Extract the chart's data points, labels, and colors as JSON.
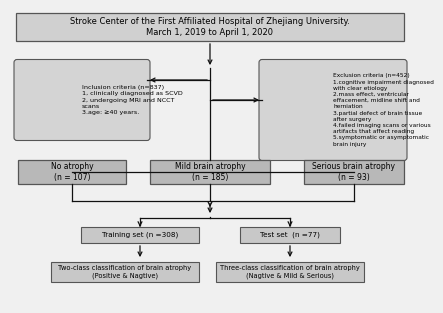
{
  "title_line1": "Stroke Center of the First Affiliated Hospital of Zhejiang University.",
  "title_line2": "March 1, 2019 to April 1, 2020",
  "inclusion_text": "Inclusion criteria (n=837)\n1, clinically diagnosed as SCVD\n2, undergoing MRI and NCCT\nscans\n3.age: ≥40 years.",
  "exclusion_text": "Exclusion criteria (n=452)\n1.cognitive impairment diagnosed\nwith clear etiology\n2.mass effect, ventricular\neffacement, midline shift and\nherniation\n3.partial defect of brain tissue\nafter surgery\n4.failed imaging scans or various\nartifacts that affect reading\n5.symptomatic or asymptomatic\nbrain injury",
  "no_atrophy": "No atrophy\n(n = 107)",
  "mild_atrophy": "Mild brain atrophy\n(n = 185)",
  "serious_atrophy": "Serious brain atrophy\n(n = 93)",
  "training_set": "Training set (n =308)",
  "test_set": "Test set  (n =77)",
  "two_class": "Two-class classification of brain atrophy\n(Positive & Nagtive)",
  "three_class": "Three-class classification of brain atrophy\n(Nagtive & Mild & Serious)",
  "box_gray": "#b8b8b8",
  "box_gray2": "#c8c8c8",
  "box_gray_light": "#d4d4d4",
  "box_edge": "#555555",
  "bg_color": "#f0f0f0",
  "text_color": "#000000",
  "arrow_color": "#111111",
  "title_fc": "#d0d0d0",
  "title_ec": "#555555"
}
